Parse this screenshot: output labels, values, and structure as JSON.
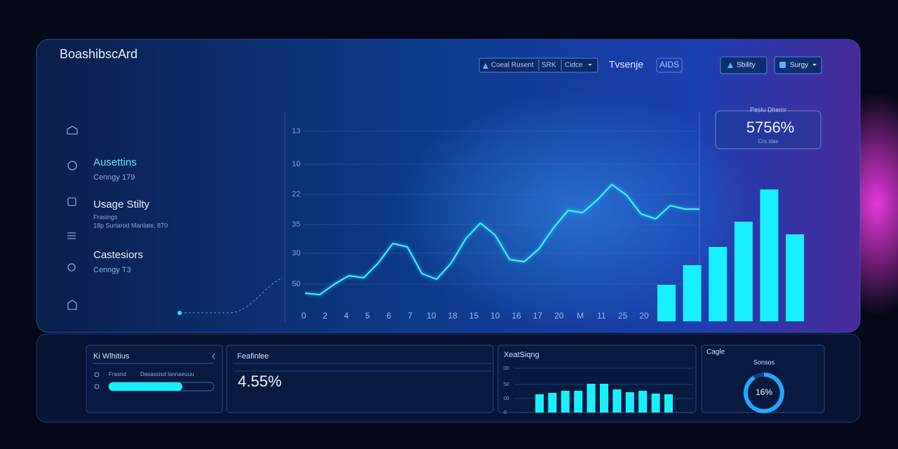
{
  "header": {
    "title": "BoashibscArd",
    "controls": [
      "Coeal Rusent",
      "SRK",
      "Cidce"
    ],
    "label": "Tvsenje",
    "badge": "AIDS",
    "buttons": [
      "Sbility",
      "Surgy"
    ]
  },
  "sidebar": [
    {
      "title": "Ausettins",
      "lines": [
        "Cenngy 179"
      ]
    },
    {
      "title": "Usage Stilty",
      "lines": [
        "Frasings",
        "18p Surlarod Manlate, 870"
      ]
    },
    {
      "title": "Castesiors",
      "lines": [
        "Cenngy T3"
      ]
    }
  ],
  "main_chart": {
    "y_labels": [
      "13",
      "10",
      "22",
      "35",
      "30",
      "50"
    ],
    "x_labels": [
      "0",
      "2",
      "4",
      "5",
      "6",
      "7",
      "10",
      "18",
      "15",
      "10",
      "16",
      "17",
      "20",
      "M",
      "11",
      "25",
      "20"
    ],
    "line": [
      42,
      40,
      55,
      67,
      64,
      85,
      113,
      108,
      70,
      62,
      85,
      120,
      142,
      125,
      90,
      87,
      105,
      135,
      160,
      157,
      175,
      197,
      182,
      155,
      148,
      167,
      162,
      162
    ],
    "bars": [
      52,
      80,
      106,
      142,
      188,
      124
    ]
  },
  "kpi": {
    "label": "Peslu Dhemr",
    "value": "5756%",
    "note": "Crs slas"
  },
  "cards": [
    {
      "title": "Ki Wlhitius",
      "fields": [
        "Frasnd",
        "Dasassisd lannaeuuu"
      ],
      "progress": 70
    },
    {
      "title": "Feafinlee",
      "value": "4.55%"
    },
    {
      "title": "XeatSiqng",
      "y_labels": [
        "00",
        "50",
        "00",
        "0"
      ],
      "bars": [
        26,
        28,
        31,
        31,
        41,
        41,
        33,
        29,
        31,
        27,
        26
      ]
    },
    {
      "title": "Cagle",
      "subtitle": "Sonsos",
      "value": "16%"
    }
  ]
}
